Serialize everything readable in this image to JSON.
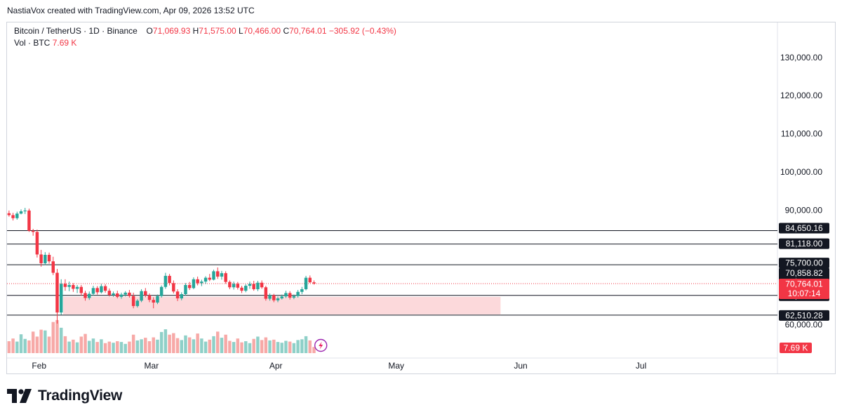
{
  "attribution": "NastiaVox created with TradingView.com, Apr 09, 2026 13:52 UTC",
  "legend": {
    "symbol": "Bitcoin / TetherUS · 1D · Binance",
    "o_label": "O",
    "o_value": "71,069.93",
    "h_label": "H",
    "h_value": "71,575.00",
    "l_label": "L",
    "l_value": "70,466.00",
    "c_label": "C",
    "c_value": "70,764.01",
    "change": "−305.92 (−0.43%)",
    "vol_label": "Vol · BTC",
    "vol_value": "7.69 K"
  },
  "brand": "TradingView",
  "colors": {
    "up": "#26a69a",
    "down": "#f23645",
    "up_vol": "#8fd0c8",
    "down_vol": "#f7a9a7",
    "zone": "#fcd9db"
  },
  "chart_data": {
    "type": "candlestick",
    "price_axis": {
      "ticks": [
        {
          "v": 130000,
          "label": "130,000.00"
        },
        {
          "v": 120000,
          "label": "120,000.00"
        },
        {
          "v": 110000,
          "label": "110,000.00"
        },
        {
          "v": 100000,
          "label": "100,000.00"
        },
        {
          "v": 90000,
          "label": "90,000.00"
        },
        {
          "v": 60000,
          "label": "60,000.00"
        }
      ],
      "range": [
        59000,
        134000
      ]
    },
    "time_axis": {
      "ticks": [
        {
          "d": 8,
          "label": "Feb"
        },
        {
          "d": 36,
          "label": "Mar"
        },
        {
          "d": 67,
          "label": "Apr"
        },
        {
          "d": 97,
          "label": "May"
        },
        {
          "d": 128,
          "label": "Jun"
        },
        {
          "d": 158,
          "label": "Jul"
        }
      ],
      "range": [
        0,
        192
      ]
    },
    "levels": [
      {
        "v": 84650.16,
        "label": "84,650.16"
      },
      {
        "v": 81118.0,
        "label": "81,118.00"
      },
      {
        "v": 75700.0,
        "label": "75,700.00"
      },
      {
        "v": 67684.86,
        "label": "67,684.86"
      },
      {
        "v": 62510.28,
        "label": "62,510.28"
      }
    ],
    "level_labels_extra": [
      {
        "v": 75700.0,
        "label": "75,700.00"
      },
      {
        "v": 70858.82,
        "label": "70,858.82"
      }
    ],
    "last_price": {
      "v": 70764.01,
      "label": "70,764.01",
      "countdown": "10:07:14"
    },
    "volume_label": "7.69 K",
    "zone": {
      "from_day": 14,
      "to_day": 123,
      "top": 67300,
      "bottom": 62700
    },
    "candles": [
      {
        "o": 89200,
        "h": 89900,
        "l": 88300,
        "c": 88700
      },
      {
        "o": 88700,
        "h": 89300,
        "l": 87300,
        "c": 87900
      },
      {
        "o": 87900,
        "h": 89600,
        "l": 87500,
        "c": 89100
      },
      {
        "o": 89100,
        "h": 90200,
        "l": 88900,
        "c": 89700
      },
      {
        "o": 89700,
        "h": 90600,
        "l": 89000,
        "c": 89900
      },
      {
        "o": 89900,
        "h": 90400,
        "l": 84300,
        "c": 84600
      },
      {
        "o": 84600,
        "h": 85100,
        "l": 83300,
        "c": 84300
      },
      {
        "o": 84300,
        "h": 84900,
        "l": 77600,
        "c": 78400
      },
      {
        "o": 78400,
        "h": 79600,
        "l": 75200,
        "c": 76100
      },
      {
        "o": 76100,
        "h": 79000,
        "l": 75600,
        "c": 78300
      },
      {
        "o": 78300,
        "h": 78900,
        "l": 76000,
        "c": 76600
      },
      {
        "o": 76600,
        "h": 77800,
        "l": 73000,
        "c": 73600
      },
      {
        "o": 73600,
        "h": 74600,
        "l": 60300,
        "c": 63200
      },
      {
        "o": 63200,
        "h": 71900,
        "l": 62600,
        "c": 70700
      },
      {
        "o": 70700,
        "h": 71900,
        "l": 68900,
        "c": 69900
      },
      {
        "o": 69900,
        "h": 71300,
        "l": 68800,
        "c": 70400
      },
      {
        "o": 70400,
        "h": 70900,
        "l": 68600,
        "c": 69400
      },
      {
        "o": 69400,
        "h": 70400,
        "l": 68300,
        "c": 69900
      },
      {
        "o": 69900,
        "h": 70400,
        "l": 67600,
        "c": 68300
      },
      {
        "o": 68300,
        "h": 68900,
        "l": 66300,
        "c": 67000
      },
      {
        "o": 67000,
        "h": 68700,
        "l": 66500,
        "c": 68100
      },
      {
        "o": 68100,
        "h": 70200,
        "l": 67600,
        "c": 69600
      },
      {
        "o": 69600,
        "h": 70100,
        "l": 67900,
        "c": 68500
      },
      {
        "o": 68500,
        "h": 70700,
        "l": 68200,
        "c": 70100
      },
      {
        "o": 70100,
        "h": 70600,
        "l": 68400,
        "c": 68900
      },
      {
        "o": 68900,
        "h": 69500,
        "l": 67400,
        "c": 67800
      },
      {
        "o": 67800,
        "h": 68700,
        "l": 67300,
        "c": 68200
      },
      {
        "o": 68200,
        "h": 68900,
        "l": 66900,
        "c": 67300
      },
      {
        "o": 67300,
        "h": 68400,
        "l": 66800,
        "c": 67900
      },
      {
        "o": 67900,
        "h": 68800,
        "l": 67400,
        "c": 68400
      },
      {
        "o": 68400,
        "h": 69100,
        "l": 67100,
        "c": 67500
      },
      {
        "o": 67500,
        "h": 68400,
        "l": 64300,
        "c": 64900
      },
      {
        "o": 64900,
        "h": 66700,
        "l": 64500,
        "c": 66300
      },
      {
        "o": 66300,
        "h": 69300,
        "l": 65900,
        "c": 68800
      },
      {
        "o": 68800,
        "h": 69600,
        "l": 67200,
        "c": 67700
      },
      {
        "o": 67700,
        "h": 68200,
        "l": 65900,
        "c": 66500
      },
      {
        "o": 66500,
        "h": 67200,
        "l": 64300,
        "c": 65800
      },
      {
        "o": 65800,
        "h": 67900,
        "l": 65400,
        "c": 67500
      },
      {
        "o": 67500,
        "h": 70300,
        "l": 67100,
        "c": 69900
      },
      {
        "o": 69900,
        "h": 73600,
        "l": 69400,
        "c": 72800
      },
      {
        "o": 72800,
        "h": 73300,
        "l": 70300,
        "c": 70900
      },
      {
        "o": 70900,
        "h": 71600,
        "l": 68200,
        "c": 68700
      },
      {
        "o": 68700,
        "h": 69300,
        "l": 66200,
        "c": 66900
      },
      {
        "o": 66900,
        "h": 68500,
        "l": 66400,
        "c": 68000
      },
      {
        "o": 68000,
        "h": 70900,
        "l": 67600,
        "c": 70400
      },
      {
        "o": 70400,
        "h": 71200,
        "l": 69100,
        "c": 69600
      },
      {
        "o": 69600,
        "h": 72400,
        "l": 69300,
        "c": 71900
      },
      {
        "o": 71900,
        "h": 72600,
        "l": 70300,
        "c": 70900
      },
      {
        "o": 70900,
        "h": 71800,
        "l": 70100,
        "c": 71300
      },
      {
        "o": 71300,
        "h": 72700,
        "l": 70700,
        "c": 72300
      },
      {
        "o": 72300,
        "h": 73300,
        "l": 71400,
        "c": 71800
      },
      {
        "o": 71800,
        "h": 74400,
        "l": 71600,
        "c": 74000
      },
      {
        "o": 74000,
        "h": 75000,
        "l": 72000,
        "c": 72600
      },
      {
        "o": 72600,
        "h": 74100,
        "l": 71800,
        "c": 73500
      },
      {
        "o": 73500,
        "h": 74000,
        "l": 70700,
        "c": 71200
      },
      {
        "o": 71200,
        "h": 71600,
        "l": 69300,
        "c": 69800
      },
      {
        "o": 69800,
        "h": 71300,
        "l": 69200,
        "c": 70700
      },
      {
        "o": 70700,
        "h": 71200,
        "l": 69200,
        "c": 69700
      },
      {
        "o": 69700,
        "h": 70200,
        "l": 68300,
        "c": 68900
      },
      {
        "o": 68900,
        "h": 70600,
        "l": 68500,
        "c": 70200
      },
      {
        "o": 70200,
        "h": 71300,
        "l": 69400,
        "c": 70700
      },
      {
        "o": 70700,
        "h": 71500,
        "l": 68900,
        "c": 69300
      },
      {
        "o": 69300,
        "h": 71500,
        "l": 68800,
        "c": 71000
      },
      {
        "o": 71000,
        "h": 71600,
        "l": 69400,
        "c": 69800
      },
      {
        "o": 69800,
        "h": 70200,
        "l": 66300,
        "c": 66800
      },
      {
        "o": 66800,
        "h": 68200,
        "l": 66300,
        "c": 67700
      },
      {
        "o": 67700,
        "h": 68100,
        "l": 65900,
        "c": 66400
      },
      {
        "o": 66400,
        "h": 67400,
        "l": 65900,
        "c": 66900
      },
      {
        "o": 66900,
        "h": 67900,
        "l": 66600,
        "c": 67400
      },
      {
        "o": 67400,
        "h": 68900,
        "l": 67000,
        "c": 68300
      },
      {
        "o": 68300,
        "h": 68800,
        "l": 66600,
        "c": 67100
      },
      {
        "o": 67100,
        "h": 67900,
        "l": 66700,
        "c": 67500
      },
      {
        "o": 67500,
        "h": 69100,
        "l": 67100,
        "c": 68600
      },
      {
        "o": 68600,
        "h": 69900,
        "l": 68000,
        "c": 69300
      },
      {
        "o": 69300,
        "h": 72800,
        "l": 69000,
        "c": 72300
      },
      {
        "o": 72300,
        "h": 72900,
        "l": 70900,
        "c": 71100
      },
      {
        "o": 71100,
        "h": 71600,
        "l": 70500,
        "c": 70800
      }
    ],
    "volume": [
      3.1,
      3.8,
      3.0,
      4.9,
      3.7,
      3.3,
      5.6,
      4.3,
      6.1,
      5.9,
      4.3,
      8.1,
      8.6,
      6.6,
      4.4,
      3.0,
      3.5,
      2.8,
      4.3,
      5.0,
      3.2,
      3.8,
      2.9,
      3.6,
      2.6,
      3.0,
      2.7,
      3.1,
      2.9,
      2.4,
      3.0,
      4.8,
      3.3,
      3.6,
      4.0,
      3.1,
      4.1,
      3.5,
      5.5,
      6.2,
      4.8,
      5.2,
      3.9,
      3.4,
      4.6,
      4.1,
      3.6,
      5.1,
      3.8,
      3.0,
      3.5,
      4.4,
      5.6,
      4.0,
      4.8,
      3.2,
      2.9,
      3.8,
      2.8,
      3.1,
      2.6,
      3.7,
      4.3,
      3.4,
      4.1,
      3.3,
      3.5,
      2.9,
      2.7,
      3.2,
      3.0,
      2.6,
      3.4,
      3.6,
      4.4,
      3.3,
      1.6
    ],
    "volume_max": 9.5
  }
}
